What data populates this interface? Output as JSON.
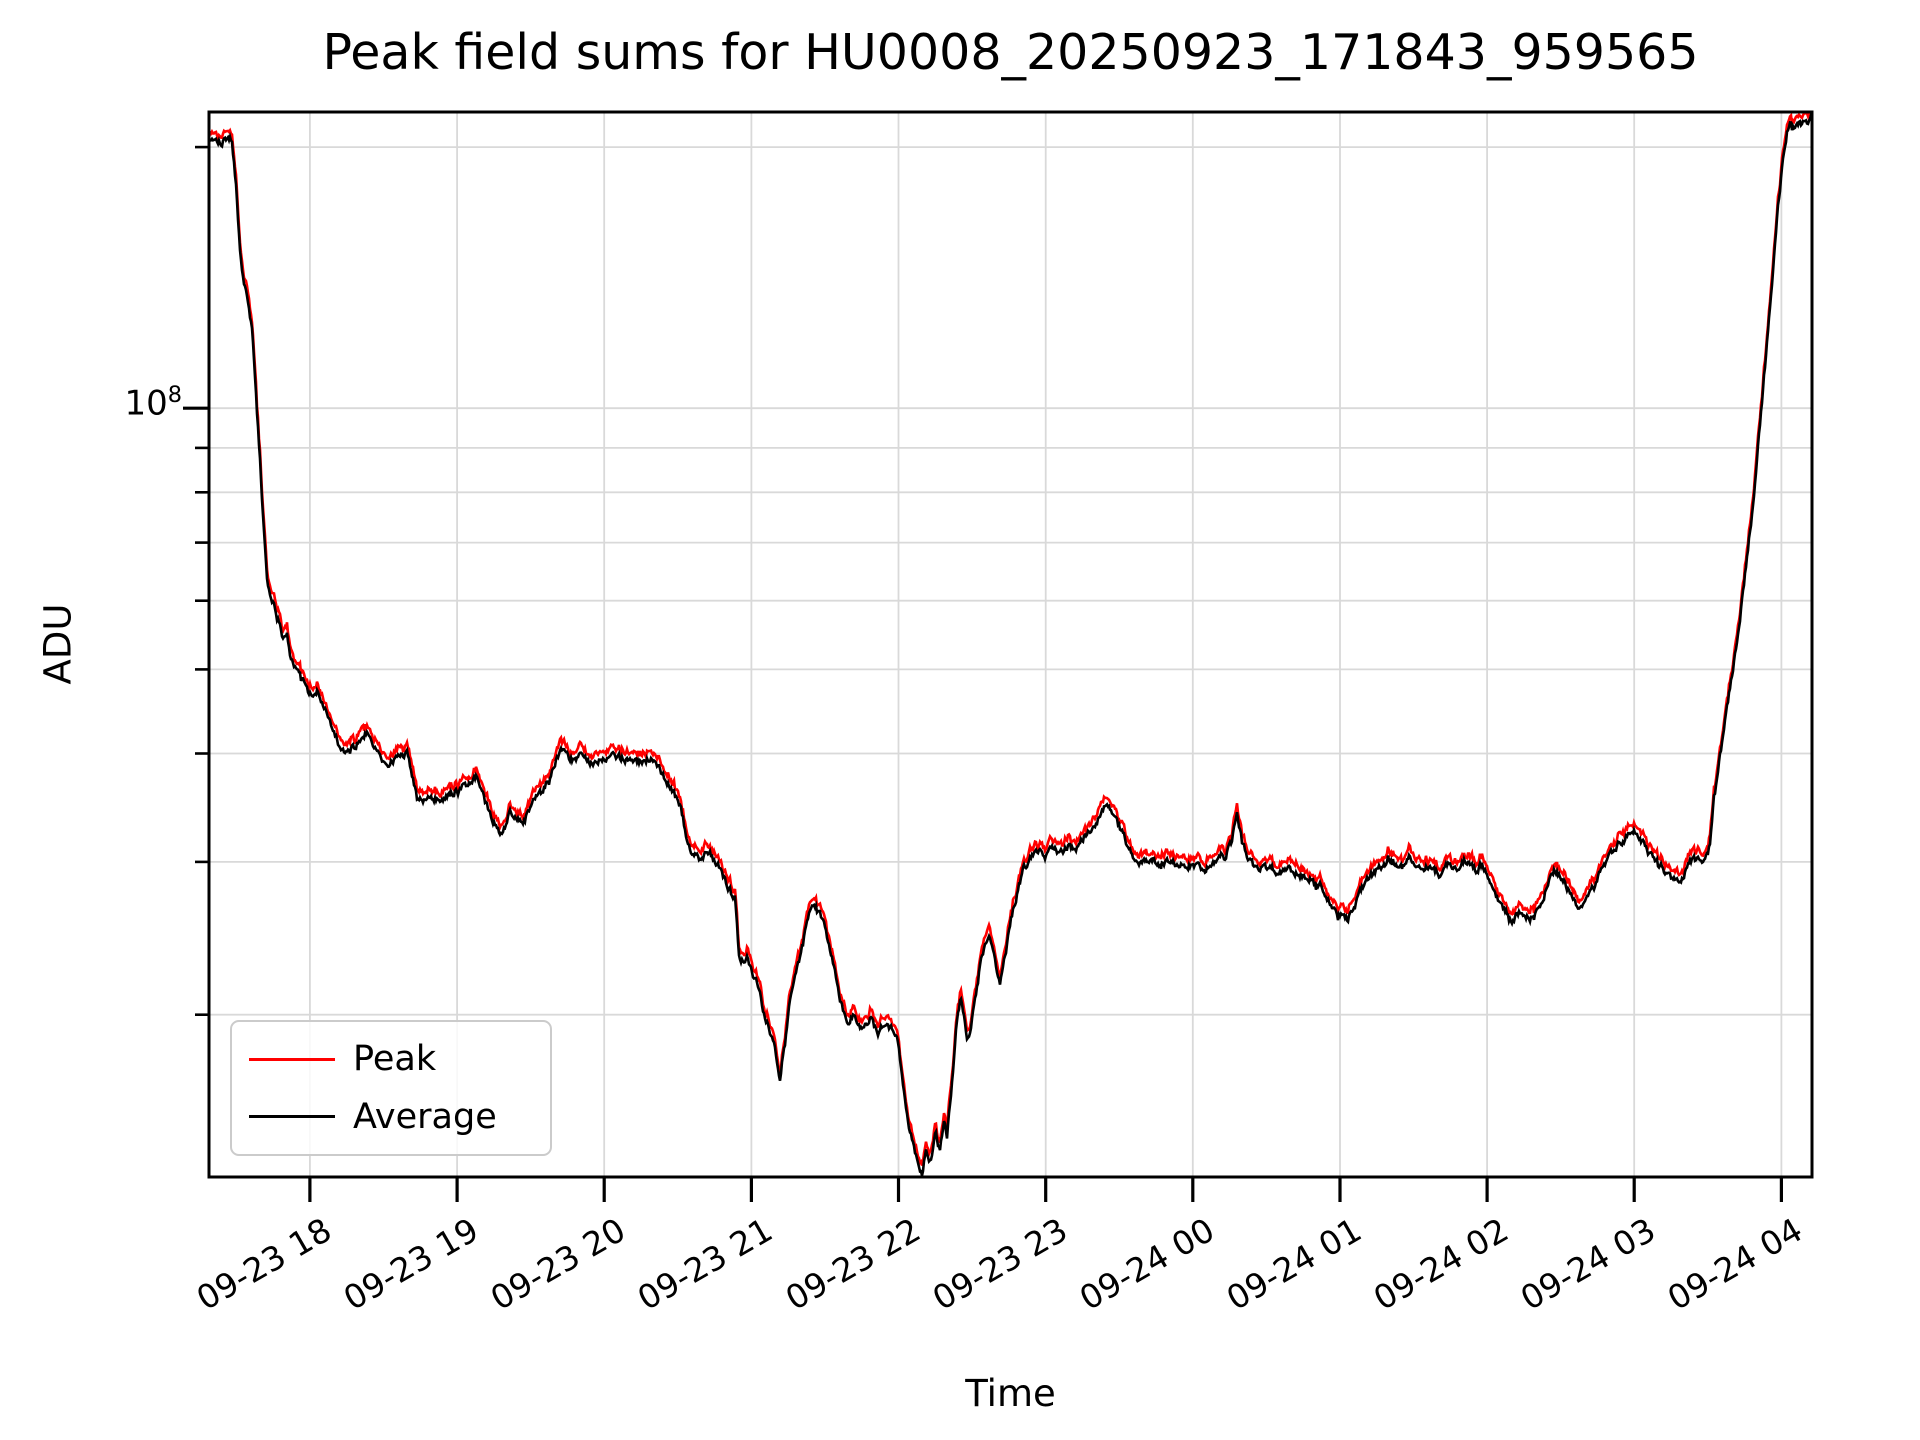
{
  "chart_data": {
    "type": "line",
    "title": "Peak field sums for HU0008_20250923_171843_959565",
    "xlabel": "Time",
    "ylabel": "ADU",
    "yscale": "log",
    "grid": "both",
    "legend_position": "lower left",
    "x_unit": "decimal hours since 2025-09-23 00:00 (values >= 24 fall on 09-24)",
    "xlim": [
      17.314,
      28.208
    ],
    "ylim": [
      13000000.0,
      219500000.0
    ],
    "x_ticks": [
      {
        "hour": 18,
        "label": "09-23 18"
      },
      {
        "hour": 19,
        "label": "09-23 19"
      },
      {
        "hour": 20,
        "label": "09-23 20"
      },
      {
        "hour": 21,
        "label": "09-23 21"
      },
      {
        "hour": 22,
        "label": "09-23 22"
      },
      {
        "hour": 23,
        "label": "09-23 23"
      },
      {
        "hour": 24,
        "label": "09-24 00"
      },
      {
        "hour": 25,
        "label": "09-24 01"
      },
      {
        "hour": 26,
        "label": "09-24 02"
      },
      {
        "hour": 27,
        "label": "09-24 03"
      },
      {
        "hour": 28,
        "label": "09-24 04"
      }
    ],
    "y_major_tick": {
      "value": 100000000.0,
      "base": "10",
      "exponent": "8"
    },
    "y_minor_ticks": [
      200000000.0,
      90000000.0,
      80000000.0,
      70000000.0,
      60000000.0,
      50000000.0,
      40000000.0,
      30000000.0,
      20000000.0
    ],
    "y_gridlines": [
      200000000.0,
      100000000.0,
      90000000.0,
      80000000.0,
      70000000.0,
      60000000.0,
      50000000.0,
      40000000.0,
      30000000.0,
      20000000.0
    ],
    "grid_color": "#d9d9d9",
    "spine_color": "#000000",
    "noise": {
      "log10_amplitude": 0.0075,
      "peak_gap_log10": 0.004,
      "peak_gap_noise_log10": 0.01
    },
    "series": [
      {
        "name": "Peak",
        "color": "#ff0000",
        "relation": "noisy upper envelope ~1-3% above Average; curves overlap at this resolution"
      },
      {
        "name": "Average",
        "color": "#000000",
        "points": [
          [
            17.314,
            204000000.0
          ],
          [
            17.36,
            205000000.0
          ],
          [
            17.4,
            203000000.0
          ],
          [
            17.44,
            205000000.0
          ],
          [
            17.47,
            204000000.0
          ],
          [
            17.5,
            178000000.0
          ],
          [
            17.525,
            152000000.0
          ],
          [
            17.545,
            142000000.0
          ],
          [
            17.57,
            135000000.0
          ],
          [
            17.61,
            122000000.0
          ],
          [
            17.64,
            99000000.0
          ],
          [
            17.66,
            88000000.0
          ],
          [
            17.68,
            76000000.0
          ],
          [
            17.71,
            63000000.0
          ],
          [
            17.735,
            60500000.0
          ],
          [
            17.76,
            59000000.0
          ],
          [
            17.8,
            55500000.0
          ],
          [
            17.815,
            54000000.0
          ],
          [
            17.845,
            55500000.0
          ],
          [
            17.865,
            52000000.0
          ],
          [
            17.91,
            50000000.0
          ],
          [
            17.95,
            48500000.0
          ],
          [
            17.99,
            47200000.0
          ],
          [
            18.02,
            46400000.0
          ],
          [
            18.055,
            47200000.0
          ],
          [
            18.08,
            46000000.0
          ],
          [
            18.15,
            42800000.0
          ],
          [
            18.205,
            40700000.0
          ],
          [
            18.24,
            39900000.0
          ],
          [
            18.27,
            40800000.0
          ],
          [
            18.305,
            40400000.0
          ],
          [
            18.34,
            41500000.0
          ],
          [
            18.395,
            42400000.0
          ],
          [
            18.44,
            40800000.0
          ],
          [
            18.51,
            38900000.0
          ],
          [
            18.545,
            39000000.0
          ],
          [
            18.61,
            39700000.0
          ],
          [
            18.66,
            40100000.0
          ],
          [
            18.73,
            35700000.0
          ],
          [
            18.78,
            35400000.0
          ],
          [
            18.85,
            35500000.0
          ],
          [
            18.93,
            35600000.0
          ],
          [
            19.005,
            36400000.0
          ],
          [
            19.07,
            37000000.0
          ],
          [
            19.14,
            37700000.0
          ],
          [
            19.22,
            34000000.0
          ],
          [
            19.3,
            32200000.0
          ],
          [
            19.36,
            34300000.0
          ],
          [
            19.45,
            33000000.0
          ],
          [
            19.515,
            35500000.0
          ],
          [
            19.58,
            36200000.0
          ],
          [
            19.695,
            40000000.0
          ],
          [
            19.715,
            40500000.0
          ],
          [
            19.77,
            39300000.0
          ],
          [
            19.835,
            39600000.0
          ],
          [
            19.9,
            38900000.0
          ],
          [
            19.97,
            39300000.0
          ],
          [
            20.07,
            39700000.0
          ],
          [
            20.16,
            39300000.0
          ],
          [
            20.24,
            39100000.0
          ],
          [
            20.345,
            39500000.0
          ],
          [
            20.4,
            37800000.0
          ],
          [
            20.445,
            36600000.0
          ],
          [
            20.515,
            35000000.0
          ],
          [
            20.58,
            30700000.0
          ],
          [
            20.65,
            30300000.0
          ],
          [
            20.72,
            30600000.0
          ],
          [
            20.765,
            30000000.0
          ],
          [
            20.835,
            28200000.0
          ],
          [
            20.89,
            27100000.0
          ],
          [
            20.92,
            23000000.0
          ],
          [
            20.97,
            23300000.0
          ],
          [
            21.01,
            22200000.0
          ],
          [
            21.045,
            21700000.0
          ],
          [
            21.08,
            20300000.0
          ],
          [
            21.125,
            19100000.0
          ],
          [
            21.16,
            18300000.0
          ],
          [
            21.195,
            16900000.0
          ],
          [
            21.23,
            18600000.0
          ],
          [
            21.26,
            20600000.0
          ],
          [
            21.31,
            22500000.0
          ],
          [
            21.35,
            24300000.0
          ],
          [
            21.39,
            26000000.0
          ],
          [
            21.43,
            26800000.0
          ],
          [
            21.465,
            26200000.0
          ],
          [
            21.515,
            24600000.0
          ],
          [
            21.555,
            22900000.0
          ],
          [
            21.6,
            20800000.0
          ],
          [
            21.655,
            19600000.0
          ],
          [
            21.705,
            20000000.0
          ],
          [
            21.75,
            19300000.0
          ],
          [
            21.805,
            19800000.0
          ],
          [
            21.86,
            19100000.0
          ],
          [
            21.91,
            19500000.0
          ],
          [
            21.96,
            19300000.0
          ],
          [
            21.995,
            18600000.0
          ],
          [
            22.03,
            16800000.0
          ],
          [
            22.065,
            15100000.0
          ],
          [
            22.1,
            14100000.0
          ],
          [
            22.13,
            13500000.0
          ],
          [
            22.16,
            13000000.0
          ],
          [
            22.185,
            14000000.0
          ],
          [
            22.215,
            13500000.0
          ],
          [
            22.25,
            14700000.0
          ],
          [
            22.28,
            13900000.0
          ],
          [
            22.31,
            15100000.0
          ],
          [
            22.33,
            14500000.0
          ],
          [
            22.365,
            16800000.0
          ],
          [
            22.39,
            19300000.0
          ],
          [
            22.42,
            20900000.0
          ],
          [
            22.445,
            19800000.0
          ],
          [
            22.47,
            18300000.0
          ],
          [
            22.515,
            20600000.0
          ],
          [
            22.555,
            22800000.0
          ],
          [
            22.595,
            24300000.0
          ],
          [
            22.62,
            24600000.0
          ],
          [
            22.655,
            23100000.0
          ],
          [
            22.69,
            21700000.0
          ],
          [
            22.73,
            23700000.0
          ],
          [
            22.77,
            26000000.0
          ],
          [
            22.81,
            27800000.0
          ],
          [
            22.845,
            29400000.0
          ],
          [
            22.895,
            30200000.0
          ],
          [
            22.95,
            30800000.0
          ],
          [
            22.995,
            30400000.0
          ],
          [
            23.045,
            31200000.0
          ],
          [
            23.1,
            30600000.0
          ],
          [
            23.15,
            31300000.0
          ],
          [
            23.2,
            30900000.0
          ],
          [
            23.265,
            32100000.0
          ],
          [
            23.335,
            33200000.0
          ],
          [
            23.38,
            34200000.0
          ],
          [
            23.425,
            35000000.0
          ],
          [
            23.47,
            33800000.0
          ],
          [
            23.52,
            32500000.0
          ],
          [
            23.575,
            30800000.0
          ],
          [
            23.64,
            30000000.0
          ],
          [
            23.71,
            30300000.0
          ],
          [
            23.775,
            29800000.0
          ],
          [
            23.845,
            30100000.0
          ],
          [
            23.91,
            29600000.0
          ],
          [
            23.995,
            29800000.0
          ],
          [
            24.08,
            29400000.0
          ],
          [
            24.15,
            30000000.0
          ],
          [
            24.22,
            30400000.0
          ],
          [
            24.265,
            31600000.0
          ],
          [
            24.3,
            34500000.0
          ],
          [
            24.335,
            31600000.0
          ],
          [
            24.39,
            30000000.0
          ],
          [
            24.44,
            29300000.0
          ],
          [
            24.525,
            29600000.0
          ],
          [
            24.59,
            29100000.0
          ],
          [
            24.66,
            29400000.0
          ],
          [
            24.73,
            28900000.0
          ],
          [
            24.795,
            28400000.0
          ],
          [
            24.865,
            28100000.0
          ],
          [
            24.91,
            27400000.0
          ],
          [
            24.965,
            26200000.0
          ],
          [
            25.05,
            25700000.0
          ],
          [
            25.09,
            26400000.0
          ],
          [
            25.135,
            27700000.0
          ],
          [
            25.19,
            28700000.0
          ],
          [
            25.26,
            29400000.0
          ],
          [
            25.34,
            30000000.0
          ],
          [
            25.41,
            29600000.0
          ],
          [
            25.475,
            30400000.0
          ],
          [
            25.545,
            29300000.0
          ],
          [
            25.61,
            29800000.0
          ],
          [
            25.68,
            29000000.0
          ],
          [
            25.735,
            30000000.0
          ],
          [
            25.78,
            29400000.0
          ],
          [
            25.85,
            30200000.0
          ],
          [
            25.92,
            29300000.0
          ],
          [
            25.965,
            29800000.0
          ],
          [
            26.02,
            28700000.0
          ],
          [
            26.065,
            27400000.0
          ],
          [
            26.12,
            26400000.0
          ],
          [
            26.17,
            25800000.0
          ],
          [
            26.225,
            26200000.0
          ],
          [
            26.29,
            25800000.0
          ],
          [
            26.36,
            26400000.0
          ],
          [
            26.415,
            28400000.0
          ],
          [
            26.46,
            29300000.0
          ],
          [
            26.51,
            28700000.0
          ],
          [
            26.565,
            27700000.0
          ],
          [
            26.62,
            26400000.0
          ],
          [
            26.665,
            26800000.0
          ],
          [
            26.715,
            28100000.0
          ],
          [
            26.765,
            29000000.0
          ],
          [
            26.835,
            30400000.0
          ],
          [
            26.905,
            31600000.0
          ],
          [
            26.97,
            32300000.0
          ],
          [
            27.01,
            32500000.0
          ],
          [
            27.05,
            31800000.0
          ],
          [
            27.105,
            30600000.0
          ],
          [
            27.16,
            30000000.0
          ],
          [
            27.21,
            29300000.0
          ],
          [
            27.265,
            28700000.0
          ],
          [
            27.3,
            28400000.0
          ],
          [
            27.34,
            29000000.0
          ],
          [
            27.38,
            30000000.0
          ],
          [
            27.42,
            30200000.0
          ],
          [
            27.46,
            30000000.0
          ],
          [
            27.495,
            30400000.0
          ],
          [
            27.515,
            31600000.0
          ],
          [
            27.54,
            35100000.0
          ],
          [
            27.57,
            38600000.0
          ],
          [
            27.6,
            41300000.0
          ],
          [
            27.63,
            45000000.0
          ],
          [
            27.67,
            50000000.0
          ],
          [
            27.72,
            57400000.0
          ],
          [
            27.765,
            67200000.0
          ],
          [
            27.81,
            78000000.0
          ],
          [
            27.84,
            90000000.0
          ],
          [
            27.875,
            105000000.0
          ],
          [
            27.91,
            123000000.0
          ],
          [
            27.945,
            144000000.0
          ],
          [
            27.975,
            169000000.0
          ],
          [
            28.01,
            193000000.0
          ],
          [
            28.04,
            209000000.0
          ],
          [
            28.06,
            213000000.0
          ],
          [
            28.085,
            210000000.0
          ],
          [
            28.11,
            214000000.0
          ],
          [
            28.14,
            211000000.0
          ],
          [
            28.165,
            216000000.0
          ],
          [
            28.19,
            214000000.0
          ],
          [
            28.208,
            218000000.0
          ]
        ]
      }
    ]
  }
}
